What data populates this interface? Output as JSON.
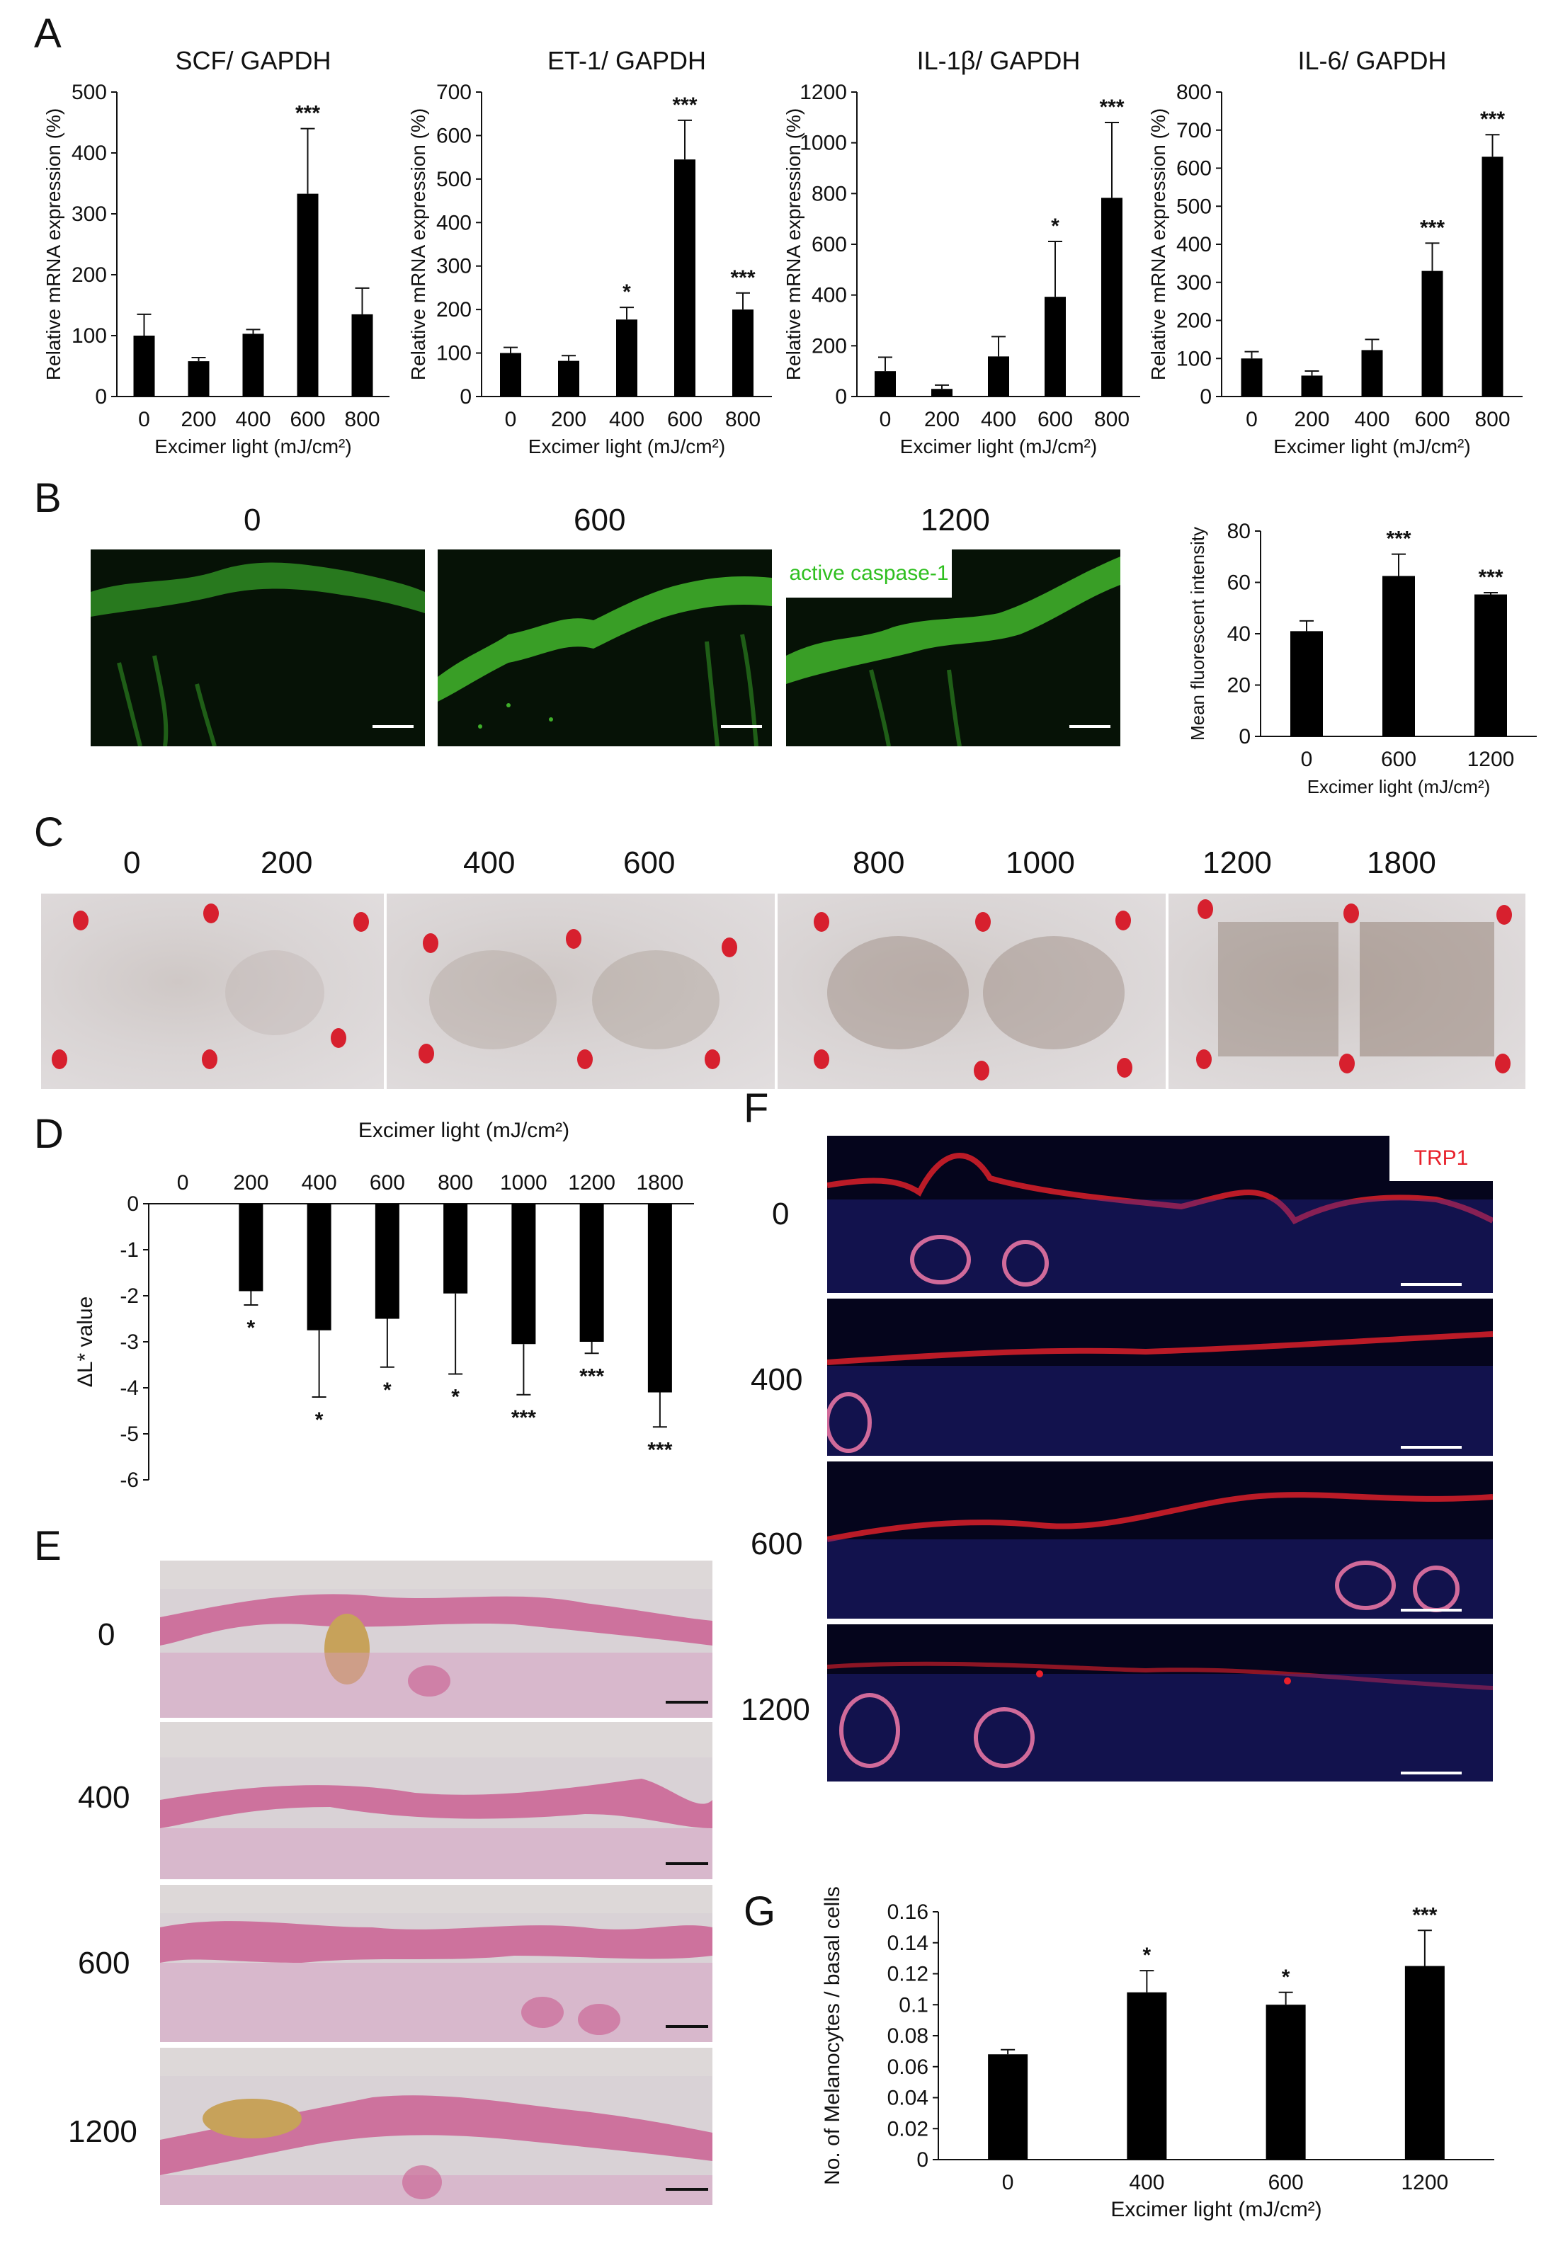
{
  "panels": {
    "A": "A",
    "B": "B",
    "C": "C",
    "D": "D",
    "E": "E",
    "F": "F",
    "G": "G"
  },
  "chart_data": [
    {
      "id": "A1",
      "type": "bar",
      "title": "SCF/ GAPDH",
      "xlabel": "Excimer light (mJ/cm²)",
      "ylabel": "Relative mRNA expression (%)",
      "categories": [
        "0",
        "200",
        "400",
        "600",
        "800"
      ],
      "values": [
        100,
        58,
        103,
        333,
        135
      ],
      "errors": [
        35,
        6,
        7,
        107,
        43
      ],
      "significance": [
        "",
        "",
        "",
        "***",
        ""
      ],
      "ylim": [
        0,
        500
      ],
      "yticks": [
        0,
        100,
        200,
        300,
        400,
        500
      ]
    },
    {
      "id": "A2",
      "type": "bar",
      "title": "ET-1/ GAPDH",
      "xlabel": "Excimer light (mJ/cm²)",
      "ylabel": "Relative mRNA expression (%)",
      "categories": [
        "0",
        "200",
        "400",
        "600",
        "800"
      ],
      "values": [
        100,
        82,
        177,
        545,
        200
      ],
      "errors": [
        13,
        12,
        28,
        90,
        38
      ],
      "significance": [
        "",
        "",
        "*",
        "***",
        "***"
      ],
      "ylim": [
        0,
        700
      ],
      "yticks": [
        0,
        100,
        200,
        300,
        400,
        500,
        600,
        700
      ]
    },
    {
      "id": "A3",
      "type": "bar",
      "title": "IL-1β/ GAPDH",
      "xlabel": "Excimer light (mJ/cm²)",
      "ylabel": "Relative mRNA expression (%)",
      "categories": [
        "0",
        "200",
        "400",
        "600",
        "800"
      ],
      "values": [
        100,
        30,
        158,
        393,
        783
      ],
      "errors": [
        55,
        15,
        78,
        218,
        297
      ],
      "significance": [
        "",
        "",
        "",
        "*",
        "***"
      ],
      "ylim": [
        0,
        1200
      ],
      "yticks": [
        0,
        200,
        400,
        600,
        800,
        1000,
        1200
      ]
    },
    {
      "id": "A4",
      "type": "bar",
      "title": "IL-6/ GAPDH",
      "xlabel": "Excimer light (mJ/cm²)",
      "ylabel": "Relative mRNA expression (%)",
      "categories": [
        "0",
        "200",
        "400",
        "600",
        "800"
      ],
      "values": [
        100,
        55,
        122,
        330,
        630
      ],
      "errors": [
        18,
        12,
        28,
        73,
        58
      ],
      "significance": [
        "",
        "",
        "",
        "***",
        "***"
      ],
      "ylim": [
        0,
        800
      ],
      "yticks": [
        0,
        100,
        200,
        300,
        400,
        500,
        600,
        700,
        800
      ]
    },
    {
      "id": "B",
      "type": "bar",
      "title": "",
      "xlabel": "Excimer light (mJ/cm²)",
      "ylabel": "Mean fluorescent intensity",
      "categories": [
        "0",
        "600",
        "1200"
      ],
      "values": [
        41,
        62.5,
        55.3
      ],
      "errors": [
        4,
        8.5,
        0.7
      ],
      "significance": [
        "",
        "***",
        "***"
      ],
      "ylim": [
        0,
        80
      ],
      "yticks": [
        0,
        20,
        40,
        60,
        80
      ]
    },
    {
      "id": "D",
      "type": "bar",
      "title": "",
      "xlabel": "Excimer light (mJ/cm²)",
      "ylabel": "ΔL* value",
      "categories": [
        "0",
        "200",
        "400",
        "600",
        "800",
        "1000",
        "1200",
        "1800"
      ],
      "values": [
        0,
        -1.9,
        -2.75,
        -2.5,
        -1.95,
        -3.05,
        -3.0,
        -4.1
      ],
      "errors": [
        0,
        0.3,
        1.45,
        1.05,
        1.75,
        1.1,
        0.25,
        0.75
      ],
      "significance": [
        "",
        "*",
        "*",
        "*",
        "*",
        "***",
        "***",
        "***"
      ],
      "ylim": [
        -6,
        0
      ],
      "yticks": [
        0,
        -1,
        -2,
        -3,
        -4,
        -5,
        -6
      ]
    },
    {
      "id": "G",
      "type": "bar",
      "title": "",
      "xlabel": "Excimer light (mJ/cm²)",
      "ylabel": "No. of Melanocytes / basal cells",
      "categories": [
        "0",
        "400",
        "600",
        "1200"
      ],
      "values": [
        0.068,
        0.108,
        0.1,
        0.125
      ],
      "errors": [
        0.003,
        0.014,
        0.008,
        0.023
      ],
      "significance": [
        "",
        "*",
        "*",
        "***"
      ],
      "ylim": [
        0,
        0.16
      ],
      "yticks": [
        0,
        0.02,
        0.04,
        0.06,
        0.08,
        0.1,
        0.12,
        0.14,
        0.16
      ]
    }
  ],
  "panelB": {
    "labels": [
      "0",
      "600",
      "1200"
    ],
    "stain_label": "active caspase-1"
  },
  "panelC": {
    "labels": [
      "0",
      "200",
      "400",
      "600",
      "800",
      "1000",
      "1200",
      "1800"
    ]
  },
  "panelE": {
    "labels": [
      "0",
      "400",
      "600",
      "1200"
    ]
  },
  "panelF": {
    "labels": [
      "0",
      "400",
      "600",
      "1200"
    ],
    "stain_label": "TRP1"
  },
  "colors": {
    "bar": "#000000",
    "fluorescence_green": "#3fae2a",
    "trp1_red": "#e8202a",
    "nuclei_blue": "#2a2aa8",
    "he_pink": "#c95a8e",
    "marker_red": "#d7202e"
  }
}
